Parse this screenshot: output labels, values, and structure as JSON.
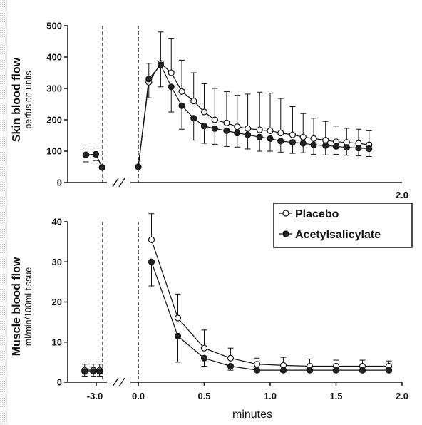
{
  "chart_data": [
    {
      "type": "line",
      "ylabel": "Skin blood flow",
      "ylabel_sub": "perfusion units",
      "ylim": [
        0,
        500
      ],
      "yticks": [
        0,
        100,
        200,
        300,
        400,
        500
      ],
      "xticks_labels": [
        {
          "value": 2.0,
          "label": "2.0"
        }
      ],
      "xlim": [
        0,
        2.0
      ],
      "baseline": {
        "series": [
          {
            "name": "Placebo",
            "x_offsets": [
              0.3,
              0.7,
              0.95
            ],
            "values": [
              88,
              90,
              48
            ],
            "err": [
              22,
              20,
              0
            ]
          },
          {
            "name": "Acetylsalicylate",
            "x_offsets": [
              0.3,
              0.7,
              0.95
            ],
            "values": [
              88,
              90,
              48
            ],
            "err": [
              22,
              20,
              0
            ]
          }
        ]
      },
      "series": [
        {
          "name": "Placebo",
          "x": [
            0.0,
            0.08,
            0.17,
            0.25,
            0.33,
            0.42,
            0.5,
            0.58,
            0.67,
            0.75,
            0.83,
            0.92,
            1.0,
            1.08,
            1.17,
            1.25,
            1.33,
            1.42,
            1.5,
            1.58,
            1.67,
            1.75
          ],
          "values": [
            50,
            320,
            380,
            350,
            290,
            260,
            225,
            200,
            190,
            178,
            172,
            168,
            165,
            158,
            152,
            145,
            140,
            135,
            130,
            128,
            125,
            120
          ],
          "err": [
            0,
            60,
            100,
            110,
            100,
            90,
            90,
            100,
            100,
            100,
            110,
            120,
            120,
            110,
            90,
            75,
            65,
            60,
            50,
            45,
            45,
            45
          ]
        },
        {
          "name": "Acetylsalicylate",
          "x": [
            0.0,
            0.08,
            0.17,
            0.25,
            0.33,
            0.42,
            0.5,
            0.58,
            0.67,
            0.75,
            0.83,
            0.92,
            1.0,
            1.08,
            1.17,
            1.25,
            1.33,
            1.42,
            1.5,
            1.58,
            1.67,
            1.75
          ],
          "values": [
            50,
            330,
            375,
            305,
            245,
            205,
            180,
            172,
            165,
            158,
            152,
            145,
            140,
            132,
            128,
            125,
            120,
            118,
            115,
            112,
            110,
            108
          ],
          "err": [
            0,
            60,
            70,
            80,
            75,
            70,
            55,
            50,
            50,
            45,
            45,
            45,
            40,
            35,
            35,
            30,
            30,
            30,
            25,
            25,
            25,
            25
          ]
        }
      ]
    },
    {
      "type": "line",
      "ylabel": "Muscle blood flow",
      "ylabel_sub": "ml/min/100ml tissue",
      "ylim": [
        0,
        40
      ],
      "yticks": [
        0,
        10,
        20,
        30,
        40
      ],
      "xticks_labels": [
        {
          "value": 0.0,
          "label": "0.0"
        },
        {
          "value": 0.5,
          "label": "0.5"
        },
        {
          "value": 1.0,
          "label": "1.0"
        },
        {
          "value": 1.5,
          "label": "1.5"
        },
        {
          "value": 2.0,
          "label": "2.0"
        }
      ],
      "baseline_tick_label": "-3.0",
      "xlim": [
        0,
        2.0
      ],
      "xlabel": "minutes",
      "legend": {
        "entries": [
          "Placebo",
          "Acetylsalicylate"
        ],
        "placement": "top-right"
      },
      "baseline": {
        "series": [
          {
            "name": "Placebo",
            "x_offsets": [
              0.25,
              0.6,
              0.85
            ],
            "values": [
              3,
              3,
              3
            ],
            "err": [
              1.5,
              1.5,
              1.5
            ]
          },
          {
            "name": "Acetylsalicylate",
            "x_offsets": [
              0.25,
              0.6,
              0.85
            ],
            "values": [
              2.7,
              2.7,
              2.7
            ],
            "err": [
              1.2,
              1.2,
              1.2
            ]
          }
        ]
      },
      "series": [
        {
          "name": "Placebo",
          "x": [
            0.1,
            0.3,
            0.5,
            0.7,
            0.9,
            1.1,
            1.3,
            1.5,
            1.7,
            1.9
          ],
          "values": [
            35.5,
            16,
            8.5,
            6,
            4.5,
            4.2,
            4,
            4,
            4,
            4
          ],
          "err": [
            6.5,
            6,
            4.5,
            2.5,
            1.5,
            2,
            1.8,
            1.5,
            1.5,
            1.3
          ]
        },
        {
          "name": "Acetylsalicylate",
          "x": [
            0.1,
            0.3,
            0.5,
            0.7,
            0.9,
            1.1,
            1.3,
            1.5,
            1.7,
            1.9
          ],
          "values": [
            30,
            11.5,
            6,
            4,
            3,
            3,
            3,
            3,
            3,
            3
          ],
          "err": [
            6,
            6.5,
            2,
            1,
            0.5,
            0.5,
            0.5,
            0.5,
            0.5,
            0.5
          ]
        }
      ]
    }
  ]
}
